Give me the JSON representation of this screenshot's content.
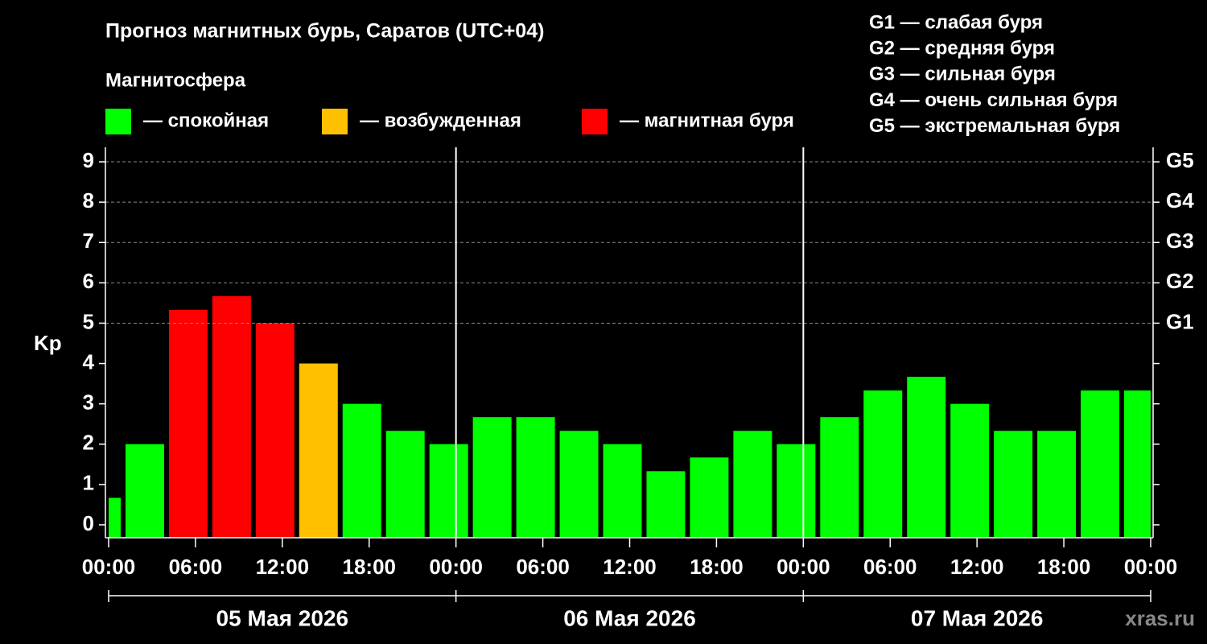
{
  "chart_data": {
    "type": "bar",
    "title": "Прогноз магнитных бурь, Саратов (UTC+04)",
    "legend_title": "Магнитосфера",
    "legend": [
      {
        "label": "— спокойная",
        "color": "#00ff00"
      },
      {
        "label": "— возбужденная",
        "color": "#ffc000"
      },
      {
        "label": "— магнитная буря",
        "color": "#ff0000"
      }
    ],
    "g_scale": [
      "G1 — слабая буря",
      "G2 — средняя буря",
      "G3 — сильная буря",
      "G4 — очень сильная буря",
      "G5 — экстремальная буря"
    ],
    "ylabel": "Kp",
    "x": [
      -0.5,
      2.5,
      5.5,
      8.5,
      11.5,
      14.5,
      17.5,
      20.5,
      23.5,
      26.5,
      29.5,
      32.5,
      35.5,
      38.5,
      41.5,
      44.5,
      47.5,
      50.5,
      53.5,
      56.5,
      59.5,
      62.5,
      65.5,
      68.5,
      71.5
    ],
    "values": [
      0.67,
      2,
      5.33,
      5.67,
      5,
      4,
      3,
      2.33,
      2,
      2.67,
      2.67,
      2.33,
      2,
      1.33,
      1.67,
      2.33,
      2,
      2.67,
      3.33,
      3.67,
      3,
      2.33,
      2.33,
      3.33,
      3.33
    ],
    "colors": [
      "#00ff00",
      "#00ff00",
      "#ff0000",
      "#ff0000",
      "#ff0000",
      "#ffc000",
      "#00ff00",
      "#00ff00",
      "#00ff00",
      "#00ff00",
      "#00ff00",
      "#00ff00",
      "#00ff00",
      "#00ff00",
      "#00ff00",
      "#00ff00",
      "#00ff00",
      "#00ff00",
      "#00ff00",
      "#00ff00",
      "#00ff00",
      "#00ff00",
      "#00ff00",
      "#00ff00",
      "#00ff00"
    ],
    "bar_width": 3,
    "xlim": [
      0,
      72
    ],
    "xticks": [
      {
        "value": 0,
        "label": "00:00"
      },
      {
        "value": 6,
        "label": "06:00"
      },
      {
        "value": 12,
        "label": "12:00"
      },
      {
        "value": 18,
        "label": "18:00"
      },
      {
        "value": 24,
        "label": "00:00"
      },
      {
        "value": 30,
        "label": "06:00"
      },
      {
        "value": 36,
        "label": "12:00"
      },
      {
        "value": 42,
        "label": "18:00"
      },
      {
        "value": 48,
        "label": "00:00"
      },
      {
        "value": 54,
        "label": "06:00"
      },
      {
        "value": 60,
        "label": "12:00"
      },
      {
        "value": 66,
        "label": "18:00"
      },
      {
        "value": 72,
        "label": "00:00"
      }
    ],
    "ylim": [
      -0.32,
      9.36
    ],
    "yticks": [
      0,
      1,
      2,
      3,
      4,
      5,
      6,
      7,
      8,
      9
    ],
    "y2lim": [
      -0.32,
      9.36
    ],
    "y2ticks": [
      {
        "value": 5,
        "label": "G1"
      },
      {
        "value": 6,
        "label": "G2"
      },
      {
        "value": 7,
        "label": "G3"
      },
      {
        "value": 8,
        "label": "G4"
      },
      {
        "value": 9,
        "label": "G5"
      }
    ],
    "grid": true,
    "day_bounds": [
      0,
      24,
      48,
      72
    ],
    "days": [
      "05 Мая 2026",
      "06 Мая 2026",
      "07 Мая 2026"
    ],
    "watermark": "xras.ru"
  }
}
